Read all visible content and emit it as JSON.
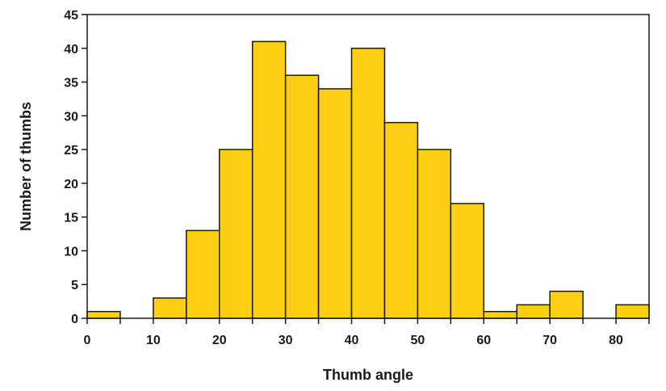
{
  "chart_data": {
    "type": "bar",
    "title": "",
    "xlabel": "Thumb angle",
    "ylabel": "Number of thumbs",
    "bin_width": 5,
    "bins": [
      {
        "start": 0,
        "value": 1
      },
      {
        "start": 5,
        "value": 0
      },
      {
        "start": 10,
        "value": 3
      },
      {
        "start": 15,
        "value": 13
      },
      {
        "start": 20,
        "value": 25
      },
      {
        "start": 25,
        "value": 41
      },
      {
        "start": 30,
        "value": 36
      },
      {
        "start": 35,
        "value": 34
      },
      {
        "start": 40,
        "value": 40
      },
      {
        "start": 45,
        "value": 29
      },
      {
        "start": 50,
        "value": 25
      },
      {
        "start": 55,
        "value": 17
      },
      {
        "start": 60,
        "value": 1
      },
      {
        "start": 65,
        "value": 2
      },
      {
        "start": 70,
        "value": 4
      },
      {
        "start": 75,
        "value": 0
      },
      {
        "start": 80,
        "value": 2
      }
    ],
    "xlim": [
      0,
      85
    ],
    "ylim": [
      0,
      45
    ],
    "x_ticks": [
      "0",
      "10",
      "20",
      "30",
      "40",
      "50",
      "60",
      "70",
      "80"
    ],
    "y_ticks": [
      "0",
      "5",
      "10",
      "15",
      "20",
      "25",
      "30",
      "35",
      "40",
      "45"
    ],
    "grid": false,
    "bar_color": "#FDCF13",
    "edge_color": "#1a1a1a"
  }
}
